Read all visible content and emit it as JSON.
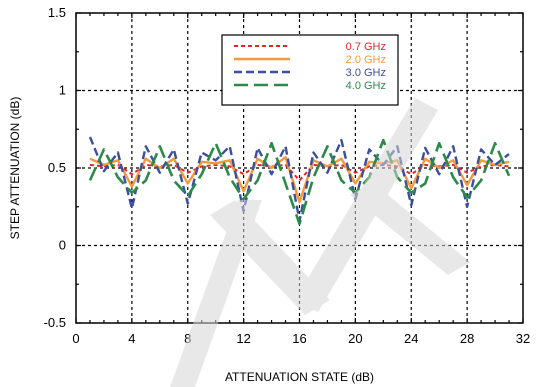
{
  "chart_data": {
    "type": "line",
    "title": "",
    "xlabel": "ATTENUATION STATE (dB)",
    "ylabel": "STEP ATTENUATION (dB)",
    "xlim": [
      0,
      32
    ],
    "ylim": [
      -0.5,
      1.5
    ],
    "x_ticks": [
      "0",
      "4",
      "8",
      "12",
      "16",
      "20",
      "24",
      "28",
      "32"
    ],
    "y_ticks": [
      "-0.5",
      "0",
      "0.5",
      "1",
      "1.5"
    ],
    "grid": true,
    "legend_position": "top-right",
    "series": [
      {
        "name": "0.7 GHz",
        "color": "#e3242b",
        "dash": "short-dash",
        "x": [
          1,
          2,
          3,
          4,
          5,
          6,
          7,
          8,
          9,
          10,
          11,
          12,
          13,
          14,
          15,
          16,
          17,
          18,
          19,
          20,
          21,
          22,
          23,
          24,
          25,
          26,
          27,
          28,
          29,
          30,
          31
        ],
        "values": [
          0.52,
          0.51,
          0.52,
          0.46,
          0.52,
          0.51,
          0.52,
          0.47,
          0.51,
          0.52,
          0.51,
          0.46,
          0.52,
          0.51,
          0.52,
          0.42,
          0.52,
          0.51,
          0.52,
          0.47,
          0.51,
          0.52,
          0.51,
          0.46,
          0.52,
          0.51,
          0.52,
          0.47,
          0.51,
          0.52,
          0.51
        ]
      },
      {
        "name": "2.0 GHz",
        "color": "#f39a3c",
        "dash": "solid",
        "x": [
          1,
          2,
          3,
          4,
          5,
          6,
          7,
          8,
          9,
          10,
          11,
          12,
          13,
          14,
          15,
          16,
          17,
          18,
          19,
          20,
          21,
          22,
          23,
          24,
          25,
          26,
          27,
          28,
          29,
          30,
          31
        ],
        "values": [
          0.56,
          0.52,
          0.55,
          0.38,
          0.56,
          0.5,
          0.56,
          0.4,
          0.54,
          0.53,
          0.55,
          0.35,
          0.56,
          0.5,
          0.57,
          0.28,
          0.55,
          0.51,
          0.56,
          0.4,
          0.54,
          0.53,
          0.55,
          0.37,
          0.56,
          0.5,
          0.55,
          0.39,
          0.55,
          0.52,
          0.54
        ]
      },
      {
        "name": "3.0 GHz",
        "color": "#3a4fa0",
        "dash": "dash",
        "x": [
          1,
          2,
          3,
          4,
          5,
          6,
          7,
          8,
          9,
          10,
          11,
          12,
          13,
          14,
          15,
          16,
          17,
          18,
          19,
          20,
          21,
          22,
          23,
          24,
          25,
          26,
          27,
          28,
          29,
          30,
          31
        ],
        "values": [
          0.7,
          0.48,
          0.6,
          0.24,
          0.64,
          0.47,
          0.62,
          0.27,
          0.6,
          0.55,
          0.64,
          0.22,
          0.63,
          0.46,
          0.64,
          0.16,
          0.6,
          0.47,
          0.68,
          0.3,
          0.62,
          0.52,
          0.64,
          0.26,
          0.63,
          0.46,
          0.64,
          0.25,
          0.62,
          0.52,
          0.59
        ]
      },
      {
        "name": "4.0 GHz",
        "color": "#2c8a48",
        "dash": "long-dash",
        "x": [
          1,
          2,
          3,
          4,
          5,
          6,
          7,
          8,
          9,
          10,
          11,
          12,
          13,
          14,
          15,
          16,
          17,
          18,
          19,
          20,
          21,
          22,
          23,
          24,
          25,
          26,
          27,
          28,
          29,
          30,
          31
        ],
        "values": [
          0.42,
          0.62,
          0.44,
          0.34,
          0.42,
          0.64,
          0.42,
          0.32,
          0.46,
          0.66,
          0.44,
          0.3,
          0.42,
          0.66,
          0.4,
          0.14,
          0.44,
          0.64,
          0.42,
          0.34,
          0.44,
          0.68,
          0.44,
          0.34,
          0.4,
          0.66,
          0.44,
          0.31,
          0.42,
          0.66,
          0.45
        ]
      }
    ]
  }
}
